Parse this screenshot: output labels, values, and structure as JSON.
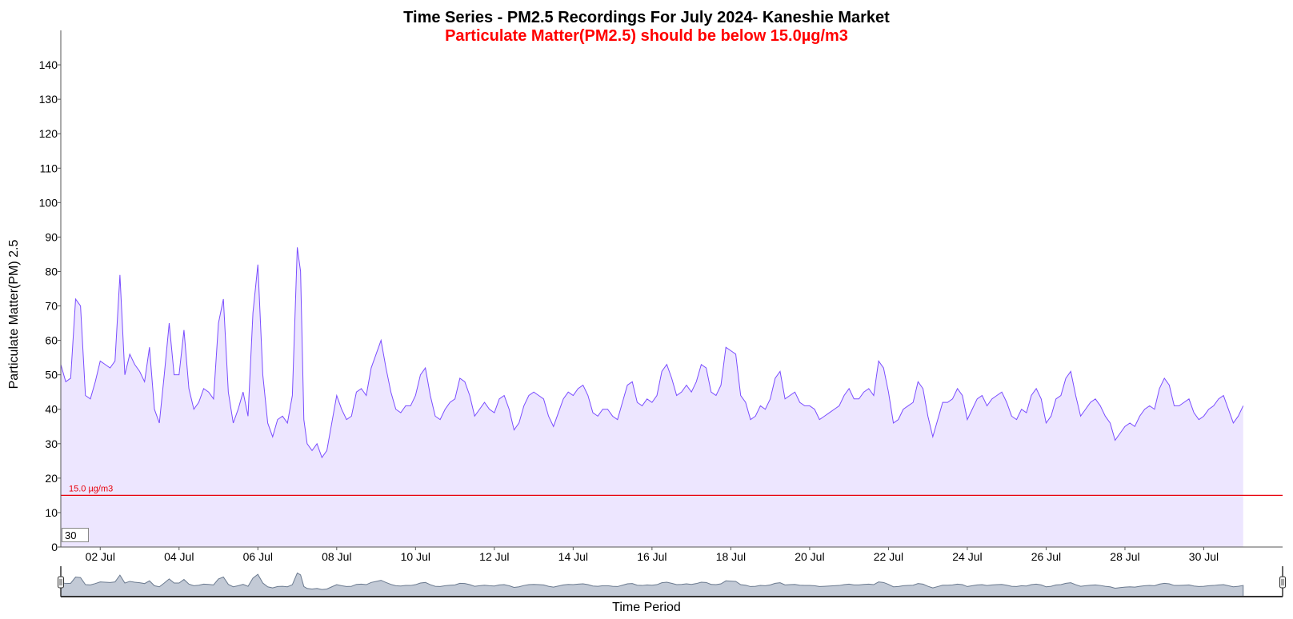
{
  "chart_data": {
    "type": "area",
    "title": "Time Series - PM2.5 Recordings For July 2024- Kaneshie Market",
    "subtitle": "Particulate Matter(PM2.5) should be below 15.0µg/m3",
    "xlabel": "Time Period",
    "ylabel": "Particulate Matter(PM) 2.5",
    "ylim": [
      0,
      150
    ],
    "yticks": [
      0,
      10,
      20,
      30,
      40,
      50,
      60,
      70,
      80,
      90,
      100,
      110,
      120,
      130,
      140
    ],
    "xlim": [
      "2024-07-01T00:00",
      "2024-08-01T00:00"
    ],
    "xticks": [
      {
        "date": "2024-07-02",
        "label": "02 Jul"
      },
      {
        "date": "2024-07-04",
        "label": "04 Jul"
      },
      {
        "date": "2024-07-06",
        "label": "06 Jul"
      },
      {
        "date": "2024-07-08",
        "label": "08 Jul"
      },
      {
        "date": "2024-07-10",
        "label": "10 Jul"
      },
      {
        "date": "2024-07-12",
        "label": "12 Jul"
      },
      {
        "date": "2024-07-14",
        "label": "14 Jul"
      },
      {
        "date": "2024-07-16",
        "label": "16 Jul"
      },
      {
        "date": "2024-07-18",
        "label": "18 Jul"
      },
      {
        "date": "2024-07-20",
        "label": "20 Jul"
      },
      {
        "date": "2024-07-22",
        "label": "22 Jul"
      },
      {
        "date": "2024-07-24",
        "label": "24 Jul"
      },
      {
        "date": "2024-07-26",
        "label": "26 Jul"
      },
      {
        "date": "2024-07-28",
        "label": "28 Jul"
      },
      {
        "date": "2024-07-30",
        "label": "30 Jul"
      }
    ],
    "threshold": {
      "value": 15.0,
      "label": "15.0 µg/m3",
      "color": "#e8000b"
    },
    "series": [
      {
        "color": "#7a4dff",
        "fill": "#ede6ff",
        "points": [
          [
            "2024-07-01T00:00",
            53
          ],
          [
            "2024-07-01T03:00",
            48
          ],
          [
            "2024-07-01T06:00",
            49
          ],
          [
            "2024-07-01T09:00",
            72
          ],
          [
            "2024-07-01T12:00",
            70
          ],
          [
            "2024-07-01T15:00",
            44
          ],
          [
            "2024-07-01T18:00",
            43
          ],
          [
            "2024-07-01T21:00",
            48
          ],
          [
            "2024-07-02T00:00",
            54
          ],
          [
            "2024-07-02T03:00",
            53
          ],
          [
            "2024-07-02T06:00",
            52
          ],
          [
            "2024-07-02T09:00",
            54
          ],
          [
            "2024-07-02T12:00",
            79
          ],
          [
            "2024-07-02T15:00",
            50
          ],
          [
            "2024-07-02T18:00",
            56
          ],
          [
            "2024-07-02T21:00",
            53
          ],
          [
            "2024-07-03T00:00",
            51
          ],
          [
            "2024-07-03T03:00",
            48
          ],
          [
            "2024-07-03T06:00",
            58
          ],
          [
            "2024-07-03T09:00",
            40
          ],
          [
            "2024-07-03T12:00",
            36
          ],
          [
            "2024-07-03T15:00",
            50
          ],
          [
            "2024-07-03T18:00",
            65
          ],
          [
            "2024-07-03T21:00",
            50
          ],
          [
            "2024-07-04T00:00",
            50
          ],
          [
            "2024-07-04T03:00",
            63
          ],
          [
            "2024-07-04T06:00",
            46
          ],
          [
            "2024-07-04T09:00",
            40
          ],
          [
            "2024-07-04T12:00",
            42
          ],
          [
            "2024-07-04T15:00",
            46
          ],
          [
            "2024-07-04T18:00",
            45
          ],
          [
            "2024-07-04T21:00",
            43
          ],
          [
            "2024-07-05T00:00",
            65
          ],
          [
            "2024-07-05T03:00",
            72
          ],
          [
            "2024-07-05T06:00",
            45
          ],
          [
            "2024-07-05T09:00",
            36
          ],
          [
            "2024-07-05T12:00",
            40
          ],
          [
            "2024-07-05T15:00",
            45
          ],
          [
            "2024-07-05T18:00",
            38
          ],
          [
            "2024-07-05T21:00",
            68
          ],
          [
            "2024-07-06T00:00",
            82
          ],
          [
            "2024-07-06T03:00",
            50
          ],
          [
            "2024-07-06T06:00",
            36
          ],
          [
            "2024-07-06T09:00",
            32
          ],
          [
            "2024-07-06T12:00",
            37
          ],
          [
            "2024-07-06T15:00",
            38
          ],
          [
            "2024-07-06T18:00",
            36
          ],
          [
            "2024-07-06T21:00",
            44
          ],
          [
            "2024-07-07T00:00",
            87
          ],
          [
            "2024-07-07T02:00",
            80
          ],
          [
            "2024-07-07T04:00",
            37
          ],
          [
            "2024-07-07T06:00",
            30
          ],
          [
            "2024-07-07T09:00",
            28
          ],
          [
            "2024-07-07T12:00",
            30
          ],
          [
            "2024-07-07T15:00",
            26
          ],
          [
            "2024-07-07T18:00",
            28
          ],
          [
            "2024-07-07T21:00",
            36
          ],
          [
            "2024-07-08T00:00",
            44
          ],
          [
            "2024-07-08T03:00",
            40
          ],
          [
            "2024-07-08T06:00",
            37
          ],
          [
            "2024-07-08T09:00",
            38
          ],
          [
            "2024-07-08T12:00",
            45
          ],
          [
            "2024-07-08T15:00",
            46
          ],
          [
            "2024-07-08T18:00",
            44
          ],
          [
            "2024-07-08T21:00",
            52
          ],
          [
            "2024-07-09T00:00",
            56
          ],
          [
            "2024-07-09T03:00",
            60
          ],
          [
            "2024-07-09T06:00",
            52
          ],
          [
            "2024-07-09T09:00",
            45
          ],
          [
            "2024-07-09T12:00",
            40
          ],
          [
            "2024-07-09T15:00",
            39
          ],
          [
            "2024-07-09T18:00",
            41
          ],
          [
            "2024-07-09T21:00",
            41
          ],
          [
            "2024-07-10T00:00",
            44
          ],
          [
            "2024-07-10T03:00",
            50
          ],
          [
            "2024-07-10T06:00",
            52
          ],
          [
            "2024-07-10T09:00",
            44
          ],
          [
            "2024-07-10T12:00",
            38
          ],
          [
            "2024-07-10T15:00",
            37
          ],
          [
            "2024-07-10T18:00",
            40
          ],
          [
            "2024-07-10T21:00",
            42
          ],
          [
            "2024-07-11T00:00",
            43
          ],
          [
            "2024-07-11T03:00",
            49
          ],
          [
            "2024-07-11T06:00",
            48
          ],
          [
            "2024-07-11T09:00",
            44
          ],
          [
            "2024-07-11T12:00",
            38
          ],
          [
            "2024-07-11T15:00",
            40
          ],
          [
            "2024-07-11T18:00",
            42
          ],
          [
            "2024-07-11T21:00",
            40
          ],
          [
            "2024-07-12T00:00",
            39
          ],
          [
            "2024-07-12T03:00",
            43
          ],
          [
            "2024-07-12T06:00",
            44
          ],
          [
            "2024-07-12T09:00",
            40
          ],
          [
            "2024-07-12T12:00",
            34
          ],
          [
            "2024-07-12T15:00",
            36
          ],
          [
            "2024-07-12T18:00",
            41
          ],
          [
            "2024-07-12T21:00",
            44
          ],
          [
            "2024-07-13T00:00",
            45
          ],
          [
            "2024-07-13T03:00",
            44
          ],
          [
            "2024-07-13T06:00",
            43
          ],
          [
            "2024-07-13T09:00",
            38
          ],
          [
            "2024-07-13T12:00",
            35
          ],
          [
            "2024-07-13T15:00",
            39
          ],
          [
            "2024-07-13T18:00",
            43
          ],
          [
            "2024-07-13T21:00",
            45
          ],
          [
            "2024-07-14T00:00",
            44
          ],
          [
            "2024-07-14T03:00",
            46
          ],
          [
            "2024-07-14T06:00",
            47
          ],
          [
            "2024-07-14T09:00",
            44
          ],
          [
            "2024-07-14T12:00",
            39
          ],
          [
            "2024-07-14T15:00",
            38
          ],
          [
            "2024-07-14T18:00",
            40
          ],
          [
            "2024-07-14T21:00",
            40
          ],
          [
            "2024-07-15T00:00",
            38
          ],
          [
            "2024-07-15T03:00",
            37
          ],
          [
            "2024-07-15T06:00",
            42
          ],
          [
            "2024-07-15T09:00",
            47
          ],
          [
            "2024-07-15T12:00",
            48
          ],
          [
            "2024-07-15T15:00",
            42
          ],
          [
            "2024-07-15T18:00",
            41
          ],
          [
            "2024-07-15T21:00",
            43
          ],
          [
            "2024-07-16T00:00",
            42
          ],
          [
            "2024-07-16T03:00",
            44
          ],
          [
            "2024-07-16T06:00",
            51
          ],
          [
            "2024-07-16T09:00",
            53
          ],
          [
            "2024-07-16T12:00",
            49
          ],
          [
            "2024-07-16T15:00",
            44
          ],
          [
            "2024-07-16T18:00",
            45
          ],
          [
            "2024-07-16T21:00",
            47
          ],
          [
            "2024-07-17T00:00",
            45
          ],
          [
            "2024-07-17T03:00",
            48
          ],
          [
            "2024-07-17T06:00",
            53
          ],
          [
            "2024-07-17T09:00",
            52
          ],
          [
            "2024-07-17T12:00",
            45
          ],
          [
            "2024-07-17T15:00",
            44
          ],
          [
            "2024-07-17T18:00",
            47
          ],
          [
            "2024-07-17T21:00",
            58
          ],
          [
            "2024-07-18T00:00",
            57
          ],
          [
            "2024-07-18T03:00",
            56
          ],
          [
            "2024-07-18T06:00",
            44
          ],
          [
            "2024-07-18T09:00",
            42
          ],
          [
            "2024-07-18T12:00",
            37
          ],
          [
            "2024-07-18T15:00",
            38
          ],
          [
            "2024-07-18T18:00",
            41
          ],
          [
            "2024-07-18T21:00",
            40
          ],
          [
            "2024-07-19T00:00",
            43
          ],
          [
            "2024-07-19T03:00",
            49
          ],
          [
            "2024-07-19T06:00",
            51
          ],
          [
            "2024-07-19T09:00",
            43
          ],
          [
            "2024-07-19T12:00",
            44
          ],
          [
            "2024-07-19T15:00",
            45
          ],
          [
            "2024-07-19T18:00",
            42
          ],
          [
            "2024-07-19T21:00",
            41
          ],
          [
            "2024-07-20T00:00",
            41
          ],
          [
            "2024-07-20T03:00",
            40
          ],
          [
            "2024-07-20T06:00",
            37
          ],
          [
            "2024-07-20T09:00",
            38
          ],
          [
            "2024-07-20T12:00",
            39
          ],
          [
            "2024-07-20T15:00",
            40
          ],
          [
            "2024-07-20T18:00",
            41
          ],
          [
            "2024-07-20T21:00",
            44
          ],
          [
            "2024-07-21T00:00",
            46
          ],
          [
            "2024-07-21T03:00",
            43
          ],
          [
            "2024-07-21T06:00",
            43
          ],
          [
            "2024-07-21T09:00",
            45
          ],
          [
            "2024-07-21T12:00",
            46
          ],
          [
            "2024-07-21T15:00",
            44
          ],
          [
            "2024-07-21T18:00",
            54
          ],
          [
            "2024-07-21T21:00",
            52
          ],
          [
            "2024-07-22T00:00",
            45
          ],
          [
            "2024-07-22T03:00",
            36
          ],
          [
            "2024-07-22T06:00",
            37
          ],
          [
            "2024-07-22T09:00",
            40
          ],
          [
            "2024-07-22T12:00",
            41
          ],
          [
            "2024-07-22T15:00",
            42
          ],
          [
            "2024-07-22T18:00",
            48
          ],
          [
            "2024-07-22T21:00",
            46
          ],
          [
            "2024-07-23T00:00",
            38
          ],
          [
            "2024-07-23T03:00",
            32
          ],
          [
            "2024-07-23T06:00",
            37
          ],
          [
            "2024-07-23T09:00",
            42
          ],
          [
            "2024-07-23T12:00",
            42
          ],
          [
            "2024-07-23T15:00",
            43
          ],
          [
            "2024-07-23T18:00",
            46
          ],
          [
            "2024-07-23T21:00",
            44
          ],
          [
            "2024-07-24T00:00",
            37
          ],
          [
            "2024-07-24T03:00",
            40
          ],
          [
            "2024-07-24T06:00",
            43
          ],
          [
            "2024-07-24T09:00",
            44
          ],
          [
            "2024-07-24T12:00",
            41
          ],
          [
            "2024-07-24T15:00",
            43
          ],
          [
            "2024-07-24T18:00",
            44
          ],
          [
            "2024-07-24T21:00",
            45
          ],
          [
            "2024-07-25T00:00",
            42
          ],
          [
            "2024-07-25T03:00",
            38
          ],
          [
            "2024-07-25T06:00",
            37
          ],
          [
            "2024-07-25T09:00",
            40
          ],
          [
            "2024-07-25T12:00",
            39
          ],
          [
            "2024-07-25T15:00",
            44
          ],
          [
            "2024-07-25T18:00",
            46
          ],
          [
            "2024-07-25T21:00",
            43
          ],
          [
            "2024-07-26T00:00",
            36
          ],
          [
            "2024-07-26T03:00",
            38
          ],
          [
            "2024-07-26T06:00",
            43
          ],
          [
            "2024-07-26T09:00",
            44
          ],
          [
            "2024-07-26T12:00",
            49
          ],
          [
            "2024-07-26T15:00",
            51
          ],
          [
            "2024-07-26T18:00",
            44
          ],
          [
            "2024-07-26T21:00",
            38
          ],
          [
            "2024-07-27T00:00",
            40
          ],
          [
            "2024-07-27T03:00",
            42
          ],
          [
            "2024-07-27T06:00",
            43
          ],
          [
            "2024-07-27T09:00",
            41
          ],
          [
            "2024-07-27T12:00",
            38
          ],
          [
            "2024-07-27T15:00",
            36
          ],
          [
            "2024-07-27T18:00",
            31
          ],
          [
            "2024-07-27T21:00",
            33
          ],
          [
            "2024-07-28T00:00",
            35
          ],
          [
            "2024-07-28T03:00",
            36
          ],
          [
            "2024-07-28T06:00",
            35
          ],
          [
            "2024-07-28T09:00",
            38
          ],
          [
            "2024-07-28T12:00",
            40
          ],
          [
            "2024-07-28T15:00",
            41
          ],
          [
            "2024-07-28T18:00",
            40
          ],
          [
            "2024-07-28T21:00",
            46
          ],
          [
            "2024-07-29T00:00",
            49
          ],
          [
            "2024-07-29T03:00",
            47
          ],
          [
            "2024-07-29T06:00",
            41
          ],
          [
            "2024-07-29T09:00",
            41
          ],
          [
            "2024-07-29T12:00",
            42
          ],
          [
            "2024-07-29T15:00",
            43
          ],
          [
            "2024-07-29T18:00",
            39
          ],
          [
            "2024-07-29T21:00",
            37
          ],
          [
            "2024-07-30T00:00",
            38
          ],
          [
            "2024-07-30T03:00",
            40
          ],
          [
            "2024-07-30T06:00",
            41
          ],
          [
            "2024-07-30T09:00",
            43
          ],
          [
            "2024-07-30T12:00",
            44
          ],
          [
            "2024-07-30T15:00",
            40
          ],
          [
            "2024-07-30T18:00",
            36
          ],
          [
            "2024-07-30T21:00",
            38
          ],
          [
            "2024-07-31T00:00",
            41
          ]
        ]
      }
    ],
    "grid": false,
    "legend": "none",
    "navigator": {
      "xlabel": "Time Period",
      "fill": "#c3cad6",
      "stroke": "#6b7a8f"
    },
    "rolling_period": "30"
  }
}
